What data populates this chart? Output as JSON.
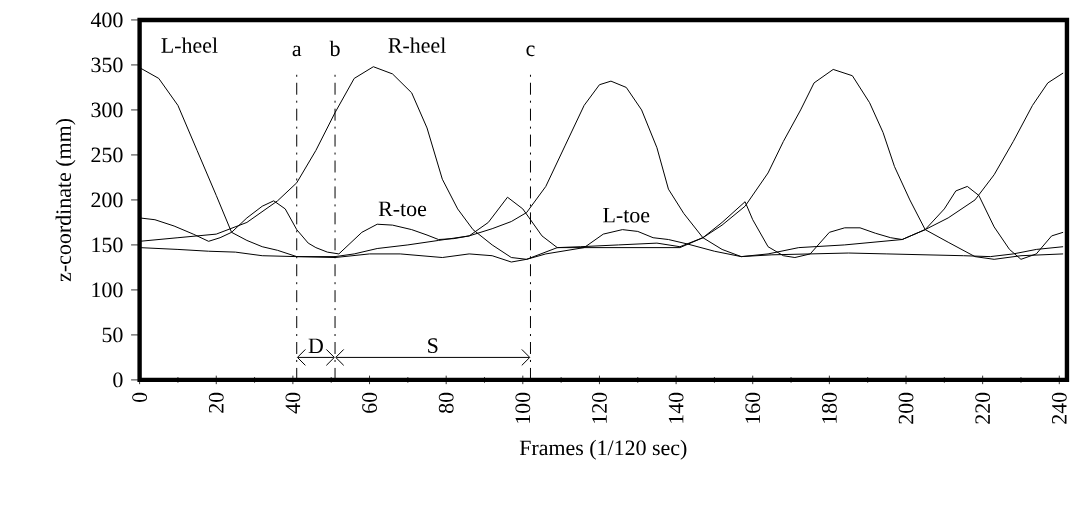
{
  "chart_data": {
    "type": "line",
    "xlabel": "Frames (1/120 sec)",
    "ylabel": "z-coordinate (mm)",
    "xlim": [
      0,
      242
    ],
    "ylim": [
      0,
      400
    ],
    "xticks": [
      0,
      20,
      40,
      60,
      80,
      100,
      120,
      140,
      160,
      180,
      200,
      220,
      240
    ],
    "yticks": [
      0,
      50,
      100,
      150,
      200,
      250,
      300,
      350,
      400
    ],
    "grid": false,
    "marker": "none",
    "line_style": "solid",
    "series": [
      {
        "name": "L-heel",
        "color": "#000000",
        "x": [
          0,
          5,
          10,
          15,
          20,
          24,
          28,
          32,
          36,
          41,
          46,
          51,
          56,
          62,
          70,
          78,
          86,
          92,
          97,
          101,
          106,
          111,
          116,
          120,
          123,
          127,
          131,
          135,
          138,
          142,
          147,
          152,
          157,
          164,
          172,
          184,
          199,
          205,
          211,
          218,
          223,
          228,
          233,
          237,
          241
        ],
        "values": [
          347,
          335,
          305,
          255,
          205,
          164,
          155,
          148,
          144,
          137,
          137,
          137,
          140,
          146,
          150,
          155,
          160,
          168,
          176,
          186,
          215,
          260,
          305,
          328,
          332,
          325,
          300,
          258,
          212,
          185,
          158,
          145,
          137,
          140,
          147,
          150,
          156,
          167,
          180,
          200,
          228,
          265,
          305,
          330,
          341
        ]
      },
      {
        "name": "R-heel",
        "color": "#000000",
        "x": [
          0,
          10,
          20,
          28,
          36,
          41,
          46,
          51,
          56,
          61,
          66,
          71,
          75,
          79,
          83,
          87,
          92,
          97,
          101,
          106,
          116,
          130,
          141,
          147,
          152,
          158,
          164,
          168,
          172.5,
          176,
          181,
          186,
          190.5,
          194,
          197,
          201,
          205,
          211,
          218,
          223,
          230,
          241
        ],
        "values": [
          154,
          158,
          162,
          175,
          199,
          219,
          255,
          297,
          335,
          348,
          340,
          319,
          280,
          223,
          190,
          167,
          150,
          136,
          134,
          140,
          147,
          147,
          147,
          158,
          172,
          193,
          230,
          265,
          300,
          330,
          345,
          338,
          308,
          275,
          237,
          200,
          167,
          153,
          137,
          134,
          138,
          140
        ]
      },
      {
        "name": "R-toe",
        "color": "#000000",
        "x": [
          0,
          4,
          9,
          14,
          18,
          21,
          24,
          28,
          32,
          35,
          38,
          41,
          44,
          46,
          49,
          52,
          55,
          58,
          62,
          66,
          71,
          75,
          78,
          82,
          86,
          91,
          96,
          100,
          105,
          109,
          115,
          125,
          135,
          141,
          147,
          152,
          158,
          160,
          164,
          168,
          171,
          175,
          180,
          184,
          188,
          192,
          196,
          199,
          205,
          210,
          213,
          216,
          219,
          223,
          227,
          230,
          234,
          238,
          241
        ],
        "values": [
          180,
          178,
          171,
          162,
          154,
          158,
          164,
          180,
          193,
          199,
          190,
          167,
          152,
          147,
          142,
          140,
          152,
          164,
          173,
          172,
          167,
          161,
          156,
          157,
          160,
          175,
          203,
          190,
          160,
          147,
          148,
          150,
          152,
          148,
          158,
          175,
          198,
          178,
          148,
          138,
          136,
          140,
          164,
          169,
          169,
          163,
          158,
          156,
          167,
          190,
          210,
          215,
          205,
          170,
          145,
          134,
          140,
          160,
          164
        ]
      },
      {
        "name": "L-toe",
        "color": "#000000",
        "x": [
          0,
          10,
          18,
          25,
          32,
          41,
          51,
          60,
          68,
          79,
          86,
          92,
          97,
          101,
          109,
          116,
          121,
          126,
          130,
          134,
          138,
          143,
          150,
          157,
          165,
          175,
          185,
          195,
          205,
          215,
          222,
          228,
          234,
          241
        ],
        "values": [
          147,
          145,
          143,
          142,
          138,
          137,
          136,
          140,
          140,
          136,
          140,
          138,
          131,
          134,
          147,
          147,
          162,
          167,
          165,
          158,
          156,
          151,
          143,
          137,
          139,
          140,
          141,
          140,
          139,
          138,
          137,
          140,
          145,
          148
        ]
      }
    ],
    "ref_lines": [
      {
        "axis": "x",
        "value": 41,
        "label": "a",
        "line_style": "dashed"
      },
      {
        "axis": "x",
        "value": 51,
        "label": "b",
        "line_style": "dashed"
      },
      {
        "axis": "x",
        "value": 102,
        "label": "c",
        "line_style": "dashed"
      }
    ],
    "annotations": [
      {
        "text": "D",
        "x": 41,
        "y": 25
      },
      "S"
    ]
  }
}
